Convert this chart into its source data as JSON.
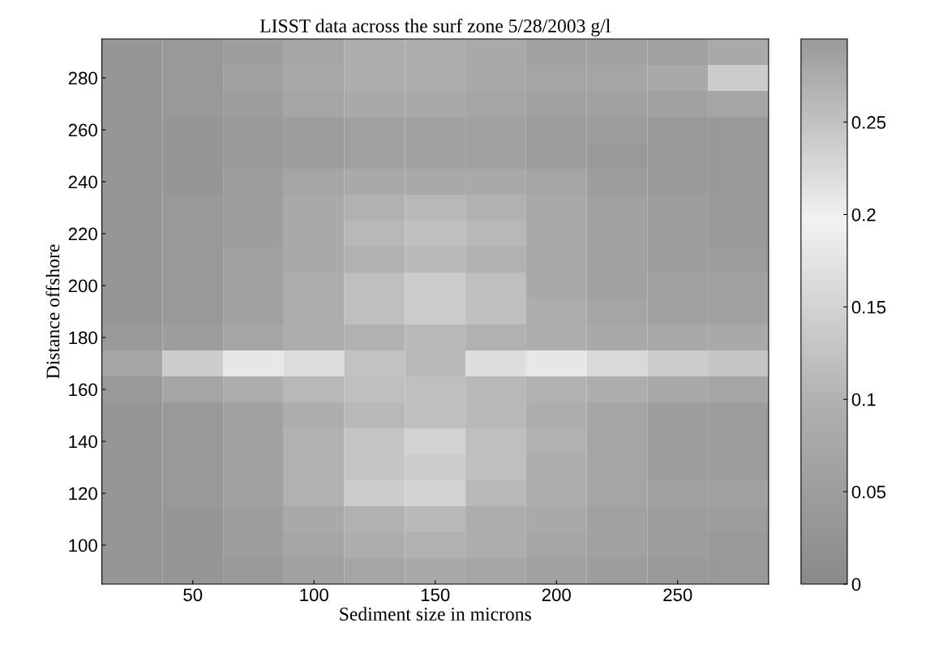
{
  "chart_data": {
    "type": "heatmap",
    "title": "LISST data across the surf zone 5/28/2003 g/l",
    "xlabel": "Sediment size in microns",
    "ylabel": "Distance offshore",
    "categories": [
      null,
      "50",
      null,
      "100",
      null,
      "150",
      null,
      "200",
      null,
      "250",
      null
    ],
    "y_categories": [
      null,
      "280",
      null,
      "260",
      null,
      "240",
      null,
      "220",
      null,
      "200",
      null,
      "180",
      null,
      "160",
      null,
      "140",
      null,
      "120",
      null,
      "100",
      null
    ],
    "cells": [
      [
        0.03,
        0.04,
        0.05,
        0.07,
        0.09,
        0.09,
        0.08,
        0.06,
        0.06,
        0.06,
        0.08
      ],
      [
        0.03,
        0.04,
        0.06,
        0.08,
        0.09,
        0.09,
        0.08,
        0.07,
        0.07,
        0.08,
        0.14
      ],
      [
        0.03,
        0.04,
        0.05,
        0.07,
        0.08,
        0.08,
        0.07,
        0.06,
        0.06,
        0.06,
        0.07
      ],
      [
        0.03,
        0.03,
        0.04,
        0.05,
        0.06,
        0.06,
        0.06,
        0.05,
        0.05,
        0.04,
        0.04
      ],
      [
        0.03,
        0.03,
        0.04,
        0.05,
        0.06,
        0.06,
        0.06,
        0.05,
        0.04,
        0.04,
        0.04
      ],
      [
        0.03,
        0.03,
        0.05,
        0.07,
        0.08,
        0.08,
        0.08,
        0.07,
        0.05,
        0.04,
        0.04
      ],
      [
        0.03,
        0.04,
        0.05,
        0.08,
        0.1,
        0.11,
        0.1,
        0.08,
        0.06,
        0.05,
        0.04
      ],
      [
        0.03,
        0.04,
        0.05,
        0.08,
        0.11,
        0.12,
        0.11,
        0.08,
        0.06,
        0.05,
        0.04
      ],
      [
        0.03,
        0.04,
        0.06,
        0.08,
        0.1,
        0.11,
        0.1,
        0.08,
        0.06,
        0.05,
        0.05
      ],
      [
        0.03,
        0.04,
        0.06,
        0.09,
        0.12,
        0.14,
        0.12,
        0.08,
        0.06,
        0.06,
        0.06
      ],
      [
        0.03,
        0.04,
        0.06,
        0.09,
        0.12,
        0.14,
        0.12,
        0.09,
        0.07,
        0.06,
        0.06
      ],
      [
        0.04,
        0.05,
        0.07,
        0.09,
        0.1,
        0.11,
        0.1,
        0.09,
        0.08,
        0.08,
        0.08
      ],
      [
        0.07,
        0.14,
        0.18,
        0.22,
        0.25,
        0.26,
        0.22,
        0.18,
        0.16,
        0.14,
        0.13
      ],
      [
        0.04,
        0.07,
        0.09,
        0.11,
        0.12,
        0.12,
        0.11,
        0.1,
        0.09,
        0.08,
        0.07
      ],
      [
        0.03,
        0.04,
        0.06,
        0.09,
        0.11,
        0.12,
        0.11,
        0.09,
        0.07,
        0.05,
        0.05
      ],
      [
        0.03,
        0.04,
        0.06,
        0.1,
        0.13,
        0.15,
        0.12,
        0.1,
        0.07,
        0.05,
        0.05
      ],
      [
        0.03,
        0.04,
        0.06,
        0.1,
        0.13,
        0.14,
        0.12,
        0.09,
        0.07,
        0.05,
        0.05
      ],
      [
        0.03,
        0.04,
        0.06,
        0.1,
        0.14,
        0.15,
        0.11,
        0.09,
        0.07,
        0.06,
        0.06
      ],
      [
        0.03,
        0.03,
        0.05,
        0.08,
        0.1,
        0.11,
        0.09,
        0.08,
        0.06,
        0.05,
        0.05
      ],
      [
        0.03,
        0.03,
        0.05,
        0.07,
        0.09,
        0.1,
        0.09,
        0.07,
        0.06,
        0.05,
        0.04
      ],
      [
        0.03,
        0.03,
        0.04,
        0.06,
        0.07,
        0.08,
        0.07,
        0.06,
        0.05,
        0.04,
        0.04
      ]
    ],
    "clim": [
      0,
      0.295
    ],
    "cticks": [
      0,
      0.05,
      0.1,
      0.15,
      0.2,
      0.25
    ]
  }
}
